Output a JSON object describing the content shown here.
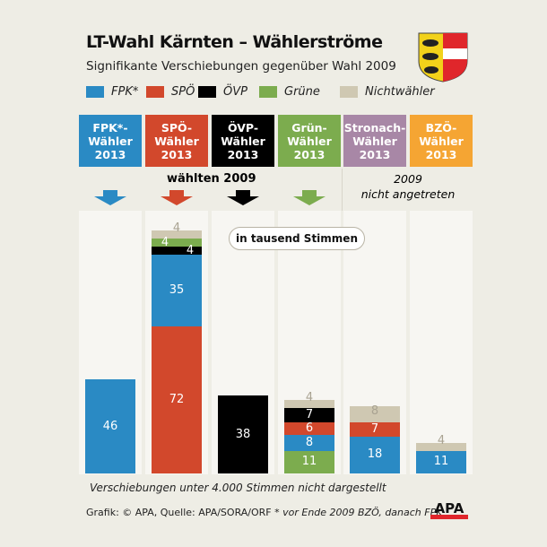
{
  "title": "LT-Wahl Kärnten – Wählerströme",
  "subtitle": "Signifikante Verschiebungen gegenüber Wahl 2009",
  "legend": [
    {
      "name": "FPK*",
      "color": "#2a8ac4"
    },
    {
      "name": "SPÖ",
      "color": "#d2482c"
    },
    {
      "name": "ÖVP",
      "color": "#000000"
    },
    {
      "name": "Grüne",
      "color": "#7cac4e"
    },
    {
      "name": "Nichtwähler",
      "color": "#cfc8b2"
    }
  ],
  "column_headers": [
    {
      "label": "FPK*-\nWähler\n2013",
      "color": "#2a8ac4"
    },
    {
      "label": "SPÖ-\nWähler\n2013",
      "color": "#d2482c"
    },
    {
      "label": "ÖVP-\nWähler\n2013",
      "color": "#000000"
    },
    {
      "label": "Grün-\nWähler\n2013",
      "color": "#7cac4e"
    },
    {
      "label": "Stronach-\nWähler\n2013",
      "color": "#a887a6"
    },
    {
      "label": "BZÖ-\nWähler\n2013",
      "color": "#f5a533"
    }
  ],
  "voted_2009_label": "wählten 2009",
  "not_running_label": "2009\nnicht angetreten",
  "unit_badge": "in tausend Stimmen",
  "note": "Verschiebungen unter 4.000 Stimmen nicht dargestellt",
  "source": "Grafik: © APA, Quelle: APA/SORA/ORF",
  "footnote": "* vor Ende 2009 BZÖ, danach FPK",
  "logo": "APA",
  "chart_data": {
    "type": "bar",
    "stacked": true,
    "ylabel": "in tausend Stimmen",
    "categories": [
      "FPK*-Wähler 2013",
      "SPÖ-Wähler 2013",
      "ÖVP-Wähler 2013",
      "Grün-Wähler 2013",
      "Stronach-Wähler 2013",
      "BZÖ-Wähler 2013"
    ],
    "series": [
      {
        "name": "FPK*",
        "color": "#2a8ac4",
        "values": [
          46,
          35,
          null,
          8,
          18,
          11
        ]
      },
      {
        "name": "SPÖ",
        "color": "#d2482c",
        "values": [
          null,
          72,
          null,
          6,
          7,
          null
        ]
      },
      {
        "name": "ÖVP",
        "color": "#000000",
        "values": [
          null,
          4,
          38,
          7,
          null,
          null
        ]
      },
      {
        "name": "Grüne",
        "color": "#7cac4e",
        "values": [
          null,
          4,
          null,
          11,
          null,
          null
        ]
      },
      {
        "name": "Nichtwähler",
        "color": "#cfc8b2",
        "values": [
          null,
          4,
          null,
          4,
          8,
          4
        ]
      }
    ],
    "stack_order": [
      [
        "FPK*"
      ],
      [
        "SPÖ",
        "FPK*",
        "ÖVP",
        "Grüne",
        "Nichtwähler"
      ],
      [
        "ÖVP"
      ],
      [
        "Grüne",
        "FPK*",
        "SPÖ",
        "ÖVP",
        "Nichtwähler"
      ],
      [
        "FPK*",
        "SPÖ",
        "Nichtwähler"
      ],
      [
        "FPK*",
        "Nichtwähler"
      ]
    ]
  }
}
